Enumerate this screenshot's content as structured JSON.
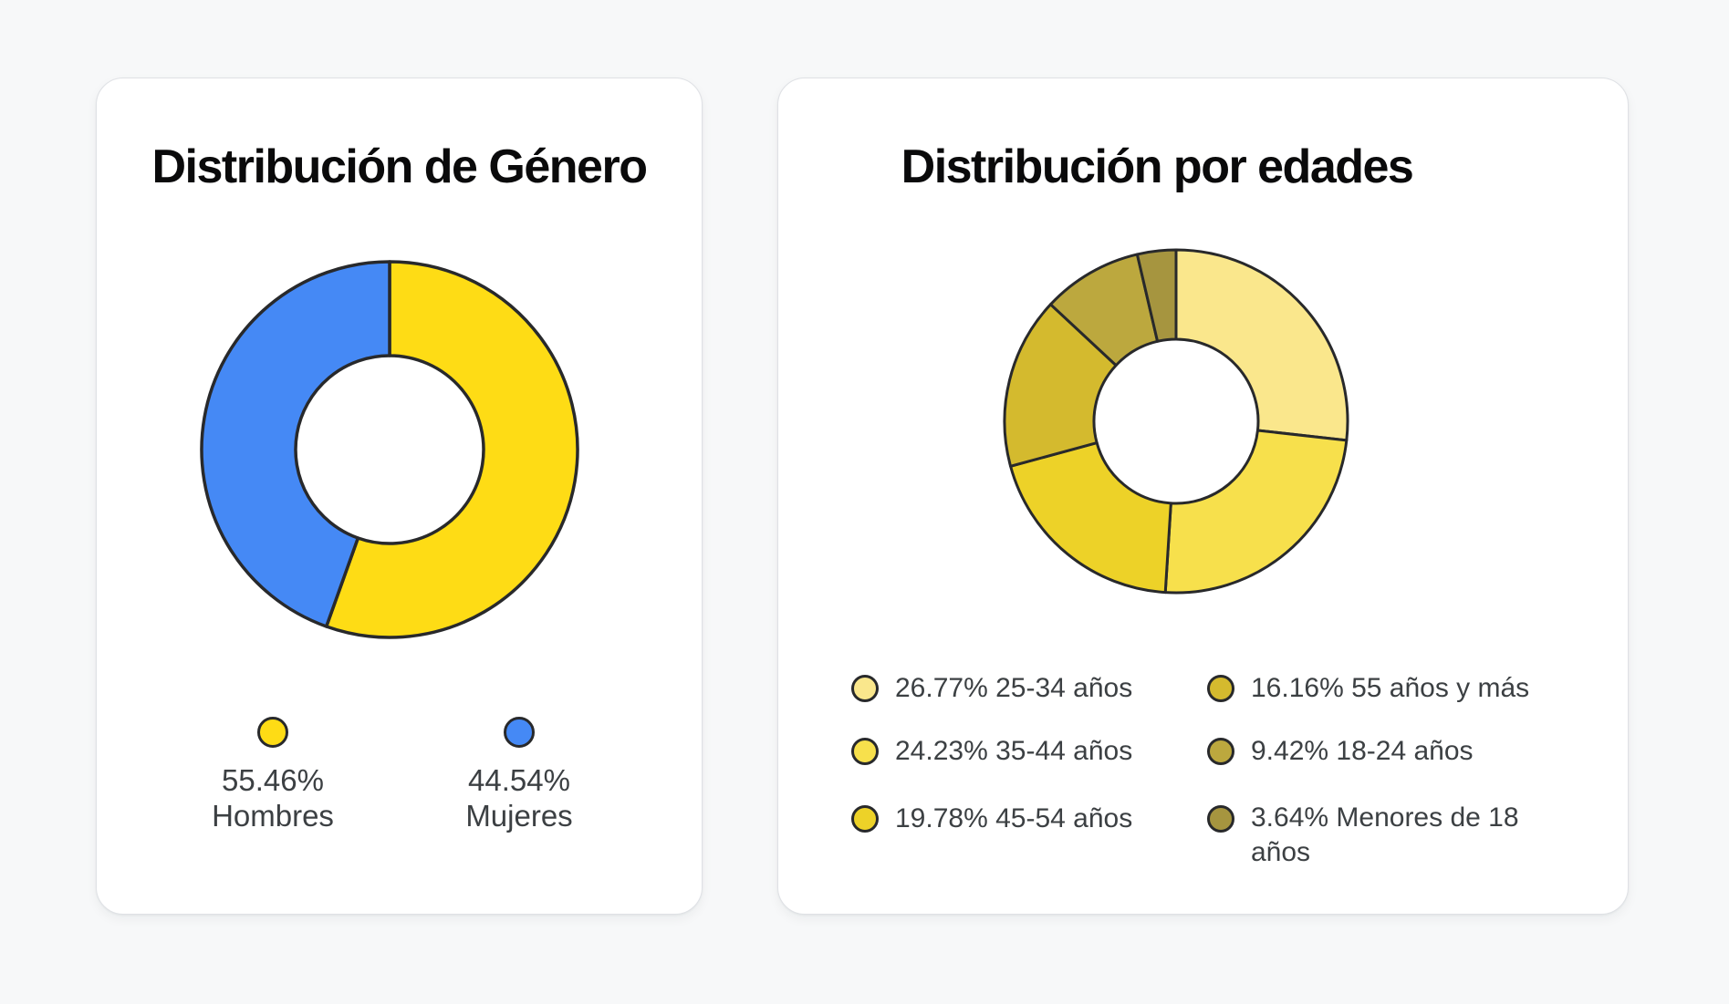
{
  "page": {
    "background": "#F7F8F9",
    "card_background": "#FFFFFF"
  },
  "chart_data": [
    {
      "type": "pie",
      "subtype": "donut",
      "title": "Distribución de Género",
      "start_angle_deg": 0,
      "direction": "clockwise",
      "stroke_color": "#28292B",
      "legend_position": "bottom",
      "slices": [
        {
          "label": "Hombres",
          "value": 55.46,
          "display": "55.46%",
          "color": "#FEDC15"
        },
        {
          "label": "Mujeres",
          "value": 44.54,
          "display": "44.54%",
          "color": "#4589F5"
        }
      ]
    },
    {
      "type": "pie",
      "subtype": "donut",
      "title": "Distribución por edades",
      "start_angle_deg": 0,
      "direction": "clockwise",
      "stroke_color": "#28292B",
      "legend_position": "bottom",
      "legend_columns": 2,
      "slices": [
        {
          "label": "25-34 años",
          "value": 26.77,
          "display": "26.77% 25-34 años",
          "color": "#FAE78C"
        },
        {
          "label": "35-44 años",
          "value": 24.23,
          "display": "24.23% 35-44 años",
          "color": "#F7E04C"
        },
        {
          "label": "45-54 años",
          "value": 19.78,
          "display": "19.78% 45-54 años",
          "color": "#EDD228"
        },
        {
          "label": "55 años y más",
          "value": 16.16,
          "display": "16.16% 55 años y más",
          "color": "#D4BA2E"
        },
        {
          "label": "18-24 años",
          "value": 9.42,
          "display": "9.42% 18-24 años",
          "color": "#BCA83E"
        },
        {
          "label": "Menores de 18 años",
          "value": 3.64,
          "display": "3.64% Menores de 18 años",
          "display_lines": [
            "3.64% Menores de 18",
            "años"
          ],
          "color": "#A6953F"
        }
      ]
    }
  ]
}
